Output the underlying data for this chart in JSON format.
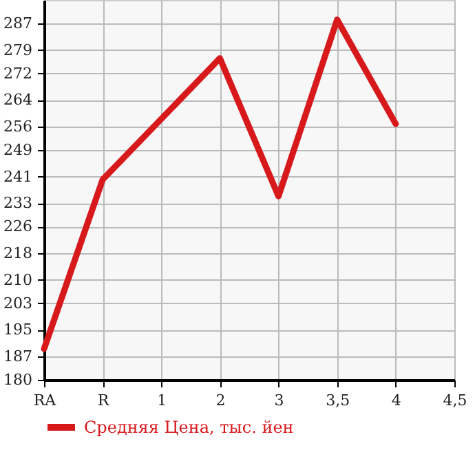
{
  "chart_data": {
    "type": "line",
    "categories": [
      "RA",
      "R",
      "1",
      "2",
      "3",
      "3,5",
      "4",
      "4,5"
    ],
    "series": [
      {
        "name": "Средняя Цена, тыс. йен",
        "color": "#d7191c",
        "values": [
          189.3,
          240.1,
          null,
          276.5,
          235.1,
          288.1,
          256.8,
          null
        ]
      }
    ],
    "ylim": [
      180,
      294
    ],
    "yticks": [
      180,
      187,
      195,
      203,
      210,
      218,
      226,
      233,
      241,
      249,
      256,
      264,
      272,
      279,
      287
    ],
    "grid": true,
    "legend": "bottom",
    "marker": "none",
    "line_style": "solid"
  }
}
